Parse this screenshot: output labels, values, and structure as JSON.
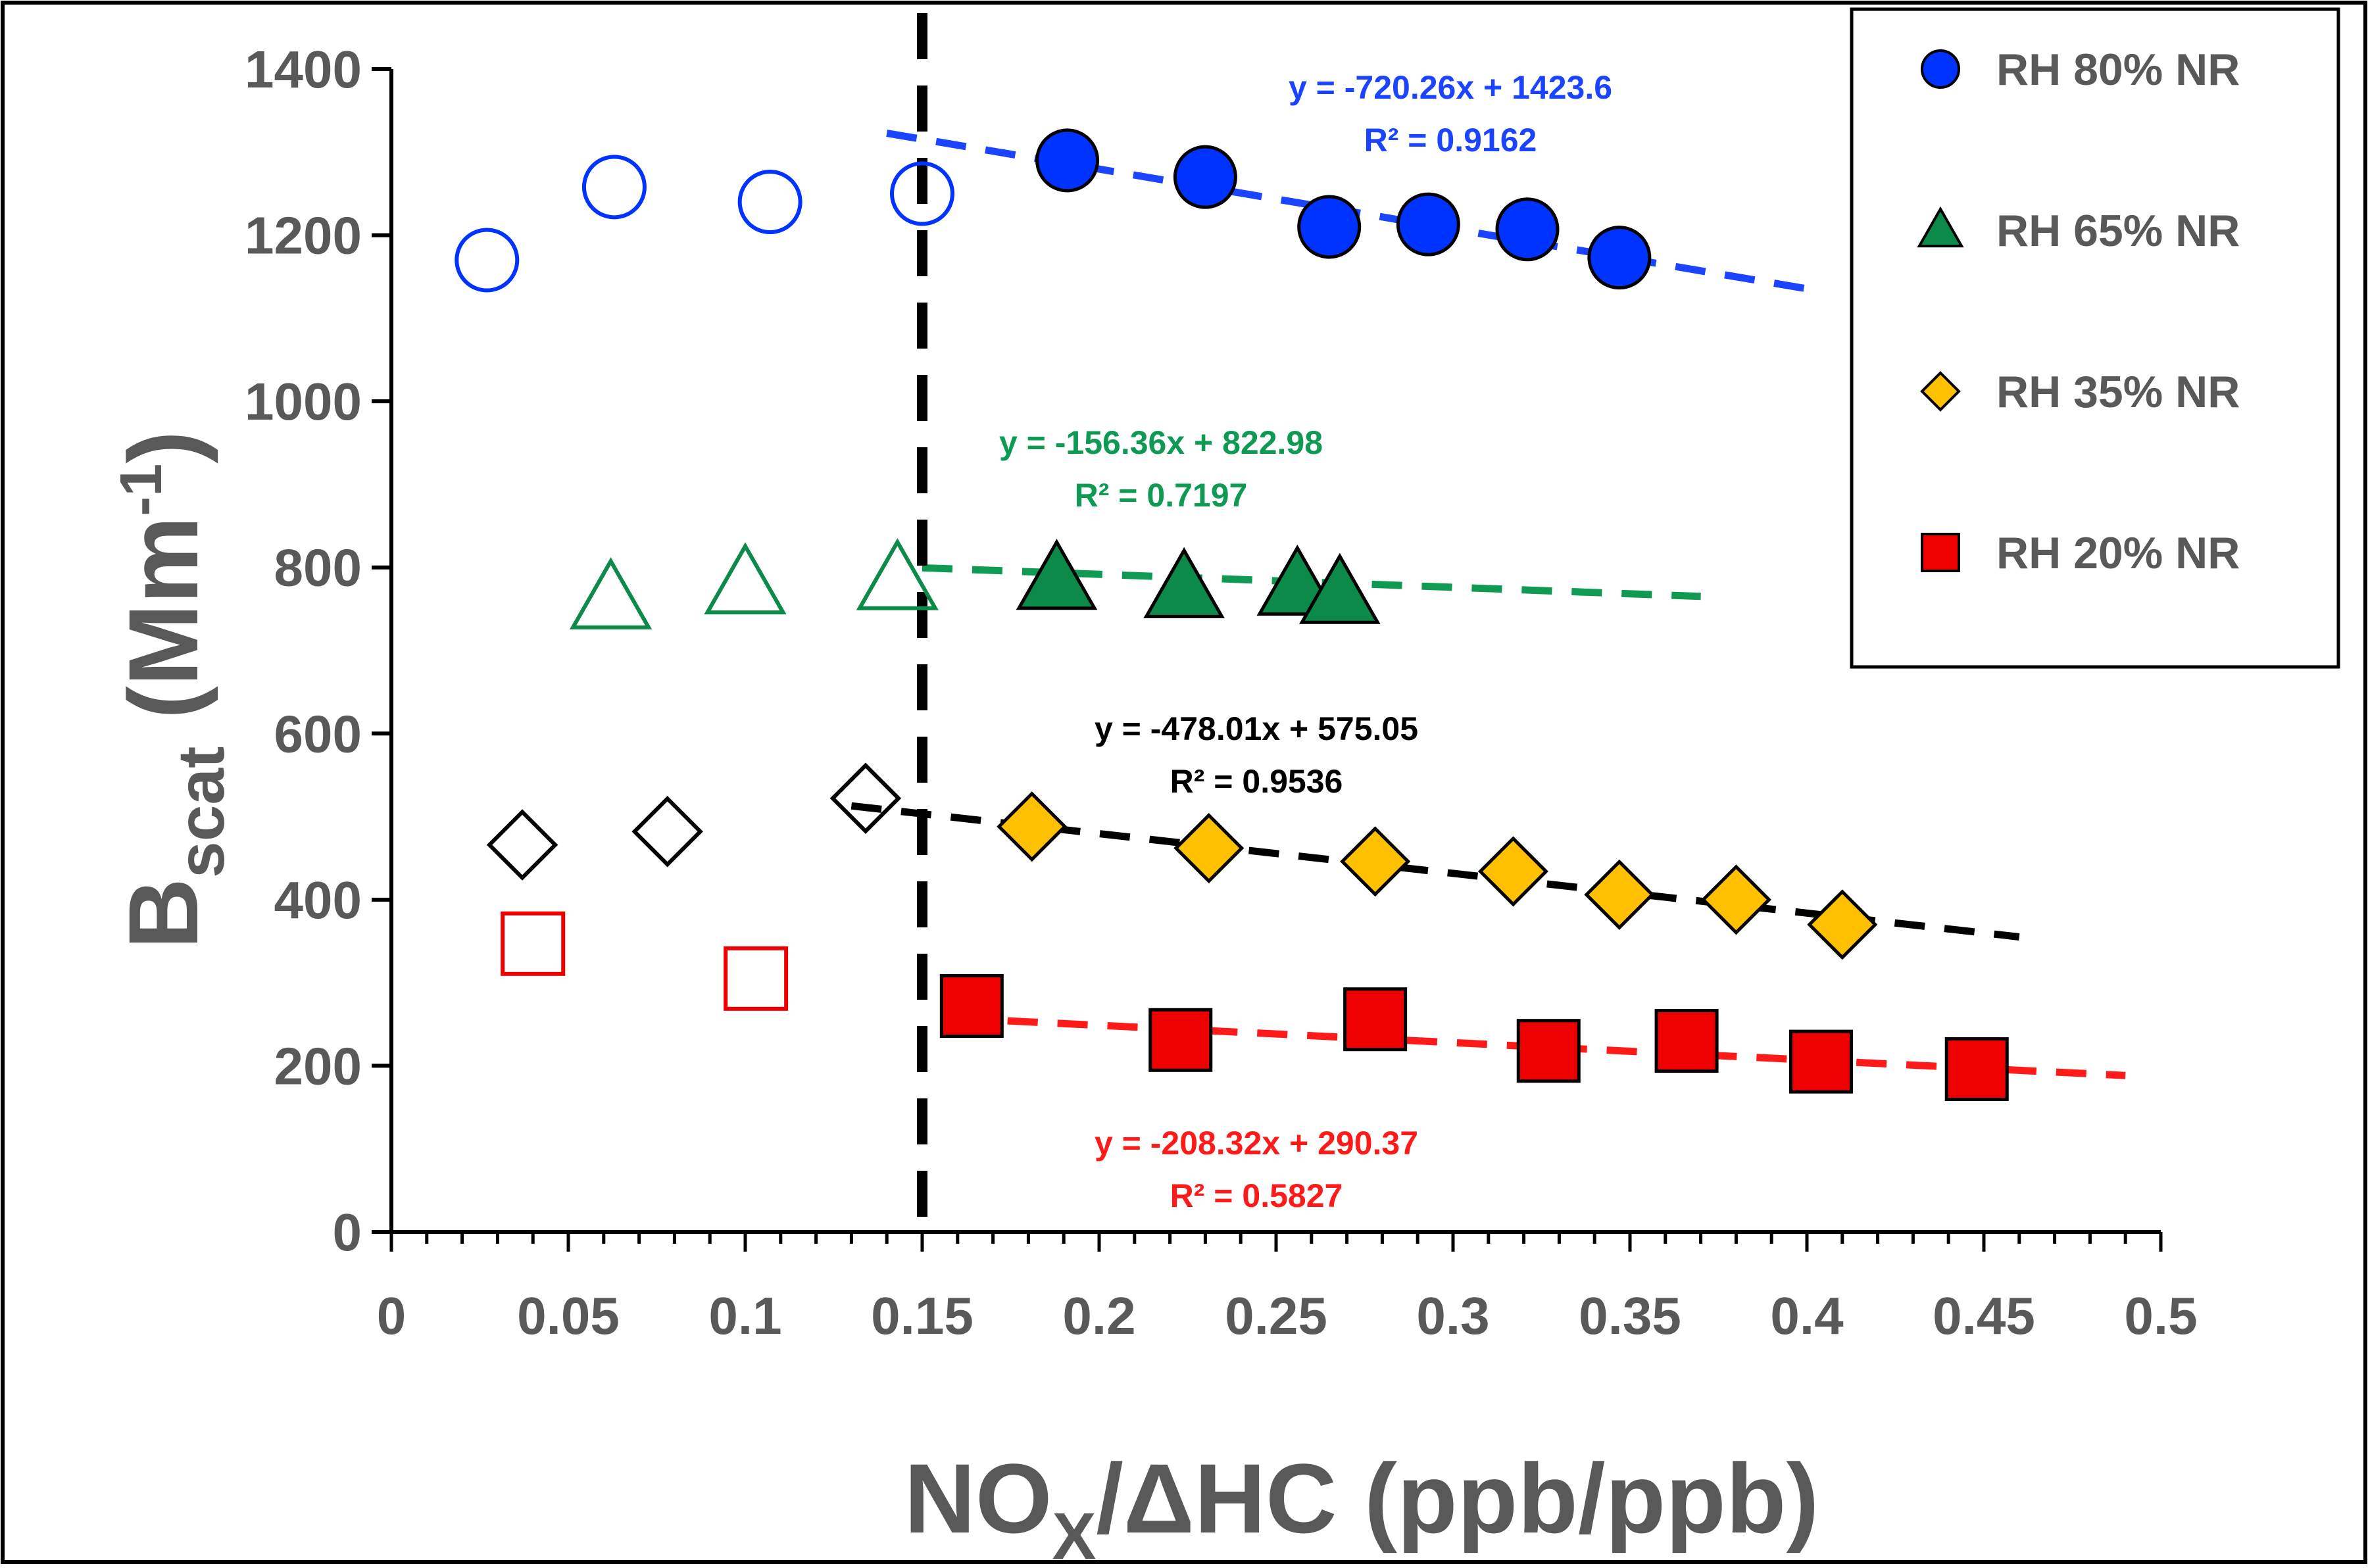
{
  "chart_data": {
    "type": "scatter",
    "x_label": {
      "base": "NO",
      "sub": "X",
      "rest": "/ΔHC  (ppb/ppb)"
    },
    "y_label": {
      "base": "B",
      "sub": "scat",
      "mid": " (Mm",
      "sup": "-1",
      "end": ")"
    },
    "xlim": [
      0,
      0.5
    ],
    "ylim": [
      0,
      1400
    ],
    "x_ticks": [
      "0",
      "0.05",
      "0.1",
      "0.15",
      "0.2",
      "0.25",
      "0.3",
      "0.35",
      "0.4",
      "0.45",
      "0.5"
    ],
    "y_ticks": [
      "0",
      "200",
      "400",
      "600",
      "800",
      "1000",
      "1200",
      "1400"
    ],
    "threshold_x": 0.15,
    "legend_position": "top-right",
    "series": [
      {
        "name": "RH 80% NR",
        "marker": "circle",
        "color": "#0033ff",
        "open_points": [
          [
            0.027,
            1170
          ],
          [
            0.063,
            1258
          ],
          [
            0.107,
            1240
          ],
          [
            0.15,
            1250
          ]
        ],
        "filled_points": [
          [
            0.191,
            1290
          ],
          [
            0.23,
            1270
          ],
          [
            0.265,
            1210
          ],
          [
            0.293,
            1213
          ],
          [
            0.321,
            1207
          ],
          [
            0.347,
            1173
          ]
        ],
        "trend": {
          "x_range": [
            0.14,
            0.4
          ],
          "slope": -720.26,
          "intercept": 1423.6,
          "color": "#1a44ff"
        },
        "equation": "y = -720.26x + 1423.6",
        "r2": "R² = 0.9162"
      },
      {
        "name": "RH 65% NR",
        "marker": "triangle",
        "color": "#0b8a4a",
        "open_points": [
          [
            0.062,
            762
          ],
          [
            0.1,
            780
          ],
          [
            0.143,
            785
          ]
        ],
        "filled_points": [
          [
            0.188,
            785
          ],
          [
            0.224,
            775
          ],
          [
            0.256,
            778
          ],
          [
            0.268,
            768
          ]
        ],
        "trend": {
          "x_range": [
            0.15,
            0.37
          ],
          "slope": -156.36,
          "intercept": 822.98,
          "color": "#0e9a52"
        },
        "equation": "y = -156.36x + 822.98",
        "r2": "R² = 0.7197"
      },
      {
        "name": "RH 35% NR",
        "marker": "diamond",
        "color": "#ffc000",
        "open_color": "#000000",
        "open_points": [
          [
            0.037,
            466
          ],
          [
            0.078,
            482
          ],
          [
            0.134,
            522
          ]
        ],
        "filled_points": [
          [
            0.181,
            488
          ],
          [
            0.231,
            462
          ],
          [
            0.278,
            446
          ],
          [
            0.317,
            434
          ],
          [
            0.347,
            406
          ],
          [
            0.38,
            400
          ],
          [
            0.41,
            370
          ]
        ],
        "trend": {
          "x_range": [
            0.13,
            0.46
          ],
          "slope": -478.01,
          "intercept": 575.05,
          "color": "#000000"
        },
        "equation": "y = -478.01x + 575.05",
        "r2": "R² = 0.9536"
      },
      {
        "name": "RH 20% NR",
        "marker": "square",
        "color": "#ee0000",
        "open_points": [
          [
            0.04,
            347
          ],
          [
            0.103,
            305
          ]
        ],
        "filled_points": [
          [
            0.164,
            272
          ],
          [
            0.223,
            231
          ],
          [
            0.278,
            256
          ],
          [
            0.327,
            218
          ],
          [
            0.366,
            230
          ],
          [
            0.404,
            205
          ],
          [
            0.448,
            196
          ]
        ],
        "trend": {
          "x_range": [
            0.16,
            0.49
          ],
          "slope": -208.32,
          "intercept": 290.37,
          "color": "#ff1a1a"
        },
        "equation": "y = -208.32x + 290.37",
        "r2": "R² = 0.5827"
      }
    ]
  }
}
